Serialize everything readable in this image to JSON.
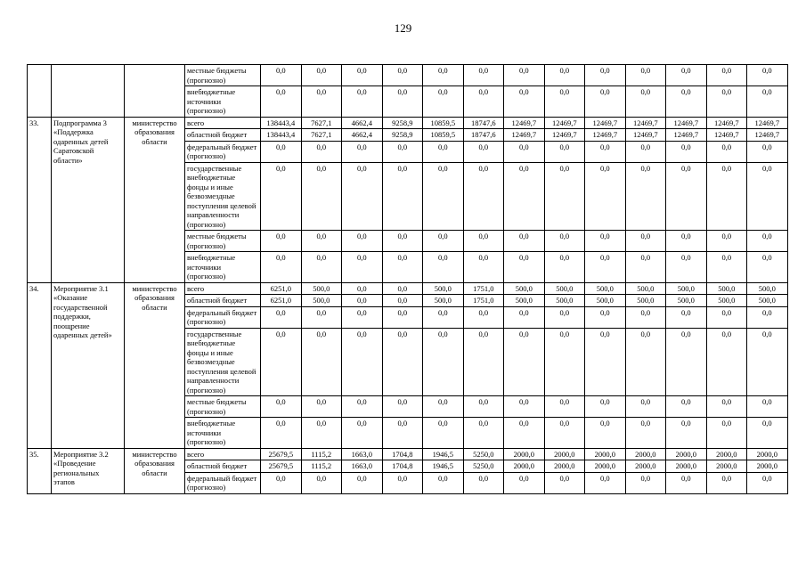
{
  "page_number": "129",
  "table": {
    "groups": [
      {
        "num": "",
        "program": "",
        "ministry": "",
        "lines": [
          {
            "source": "местные бюджеты (прогнозно)",
            "values": [
              "0,0",
              "0,0",
              "0,0",
              "0,0",
              "0,0",
              "0,0",
              "0,0",
              "0,0",
              "0,0",
              "0,0",
              "0,0",
              "0,0",
              "0,0"
            ]
          },
          {
            "source": "внебюджетные источники (прогнозно)",
            "values": [
              "0,0",
              "0,0",
              "0,0",
              "0,0",
              "0,0",
              "0,0",
              "0,0",
              "0,0",
              "0,0",
              "0,0",
              "0,0",
              "0,0",
              "0,0"
            ]
          }
        ]
      },
      {
        "num": "33.",
        "program": "Подпрограмма 3 «Поддержка одаренных детей Саратовской области»",
        "ministry": "министерство образования области",
        "lines": [
          {
            "source": "всего",
            "values": [
              "138443,4",
              "7627,1",
              "4662,4",
              "9258,9",
              "10859,5",
              "18747,6",
              "12469,7",
              "12469,7",
              "12469,7",
              "12469,7",
              "12469,7",
              "12469,7",
              "12469,7"
            ]
          },
          {
            "source": "областной бюджет",
            "values": [
              "138443,4",
              "7627,1",
              "4662,4",
              "9258,9",
              "10859,5",
              "18747,6",
              "12469,7",
              "12469,7",
              "12469,7",
              "12469,7",
              "12469,7",
              "12469,7",
              "12469,7"
            ]
          },
          {
            "source": "федеральный бюджет (прогнозно)",
            "values": [
              "0,0",
              "0,0",
              "0,0",
              "0,0",
              "0,0",
              "0,0",
              "0,0",
              "0,0",
              "0,0",
              "0,0",
              "0,0",
              "0,0",
              "0,0"
            ]
          },
          {
            "source": "государственные внебюджетные фонды и иные безвозмездные поступления целевой направленности (прогнозно)",
            "values": [
              "0,0",
              "0,0",
              "0,0",
              "0,0",
              "0,0",
              "0,0",
              "0,0",
              "0,0",
              "0,0",
              "0,0",
              "0,0",
              "0,0",
              "0,0"
            ]
          },
          {
            "source": "местные бюджеты (прогнозно)",
            "values": [
              "0,0",
              "0,0",
              "0,0",
              "0,0",
              "0,0",
              "0,0",
              "0,0",
              "0,0",
              "0,0",
              "0,0",
              "0,0",
              "0,0",
              "0,0"
            ]
          },
          {
            "source": "внебюджетные источники (прогнозно)",
            "values": [
              "0,0",
              "0,0",
              "0,0",
              "0,0",
              "0,0",
              "0,0",
              "0,0",
              "0,0",
              "0,0",
              "0,0",
              "0,0",
              "0,0",
              "0,0"
            ]
          }
        ]
      },
      {
        "num": "34.",
        "program": "Мероприятие 3.1 «Оказание государственной поддержки, поощрение одаренных детей»",
        "ministry": "министерство образования области",
        "lines": [
          {
            "source": "всего",
            "values": [
              "6251,0",
              "500,0",
              "0,0",
              "0,0",
              "500,0",
              "1751,0",
              "500,0",
              "500,0",
              "500,0",
              "500,0",
              "500,0",
              "500,0",
              "500,0"
            ]
          },
          {
            "source": "областной бюджет",
            "values": [
              "6251,0",
              "500,0",
              "0,0",
              "0,0",
              "500,0",
              "1751,0",
              "500,0",
              "500,0",
              "500,0",
              "500,0",
              "500,0",
              "500,0",
              "500,0"
            ]
          },
          {
            "source": "федеральный бюджет (прогнозно)",
            "values": [
              "0,0",
              "0,0",
              "0,0",
              "0,0",
              "0,0",
              "0,0",
              "0,0",
              "0,0",
              "0,0",
              "0,0",
              "0,0",
              "0,0",
              "0,0"
            ]
          },
          {
            "source": "государственные внебюджетные фонды и иные безвозмездные поступления целевой направленности (прогнозно)",
            "values": [
              "0,0",
              "0,0",
              "0,0",
              "0,0",
              "0,0",
              "0,0",
              "0,0",
              "0,0",
              "0,0",
              "0,0",
              "0,0",
              "0,0",
              "0,0"
            ]
          },
          {
            "source": "местные бюджеты (прогнозно)",
            "values": [
              "0,0",
              "0,0",
              "0,0",
              "0,0",
              "0,0",
              "0,0",
              "0,0",
              "0,0",
              "0,0",
              "0,0",
              "0,0",
              "0,0",
              "0,0"
            ]
          },
          {
            "source": "внебюджетные источники (прогнозно)",
            "values": [
              "0,0",
              "0,0",
              "0,0",
              "0,0",
              "0,0",
              "0,0",
              "0,0",
              "0,0",
              "0,0",
              "0,0",
              "0,0",
              "0,0",
              "0,0"
            ]
          }
        ]
      },
      {
        "num": "35.",
        "program": "Мероприятие 3.2 «Проведение региональных этапов",
        "ministry": "министерство образования области",
        "lines": [
          {
            "source": "всего",
            "values": [
              "25679,5",
              "1115,2",
              "1663,0",
              "1704,8",
              "1946,5",
              "5250,0",
              "2000,0",
              "2000,0",
              "2000,0",
              "2000,0",
              "2000,0",
              "2000,0",
              "2000,0"
            ]
          },
          {
            "source": "областной бюджет",
            "values": [
              "25679,5",
              "1115,2",
              "1663,0",
              "1704,8",
              "1946,5",
              "5250,0",
              "2000,0",
              "2000,0",
              "2000,0",
              "2000,0",
              "2000,0",
              "2000,0",
              "2000,0"
            ]
          },
          {
            "source": "федеральный бюджет (прогнозно)",
            "values": [
              "0,0",
              "0,0",
              "0,0",
              "0,0",
              "0,0",
              "0,0",
              "0,0",
              "0,0",
              "0,0",
              "0,0",
              "0,0",
              "0,0",
              "0,0"
            ]
          }
        ]
      }
    ]
  }
}
